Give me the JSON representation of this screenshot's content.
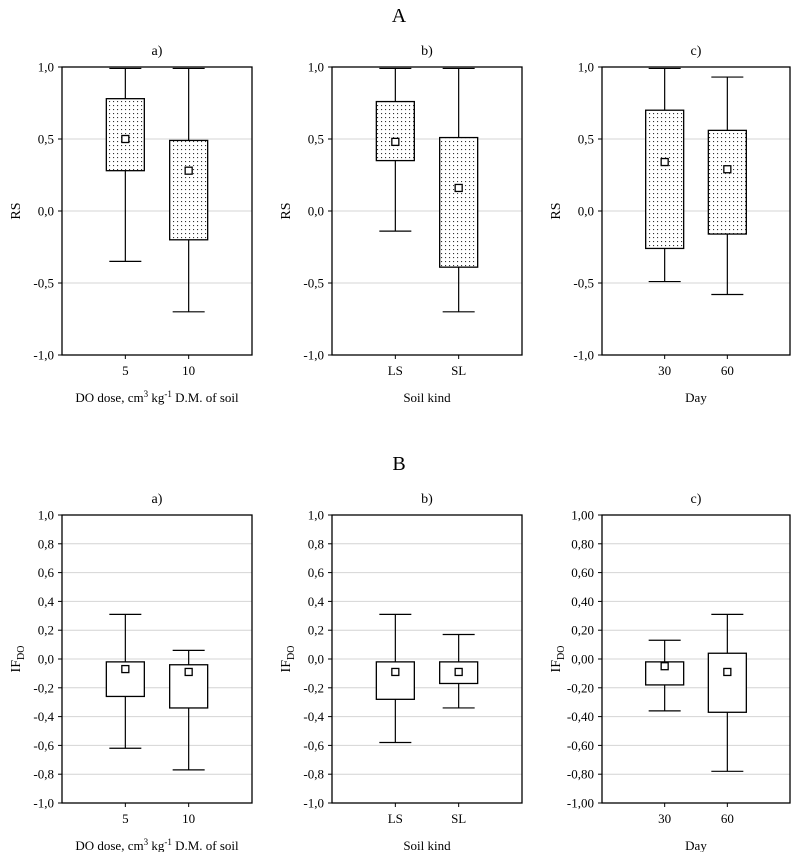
{
  "section_labels": {
    "top": "A",
    "bottom": "B"
  },
  "chart_data": [
    {
      "type": "box",
      "section": "A",
      "panel": "a)",
      "xlabel": "DO dose, cm³ kg⁻¹ D.M. of soil",
      "ylabel": "RS",
      "ylabel_sub": "",
      "ylim": [
        -1.0,
        1.0
      ],
      "yticks": [
        "1,0",
        "0,5",
        "0,0",
        "-0,5",
        "-1,0"
      ],
      "ytick_values": [
        1.0,
        0.5,
        0.0,
        -0.5,
        -1.0
      ],
      "grid": "horizontal",
      "fill": "dotted",
      "categories": [
        "5",
        "10"
      ],
      "boxes": [
        {
          "min": -0.35,
          "q1": 0.28,
          "median": 0.5,
          "q3": 0.78,
          "max": 0.99
        },
        {
          "min": -0.7,
          "q1": -0.2,
          "median": 0.28,
          "q3": 0.49,
          "max": 0.99
        }
      ]
    },
    {
      "type": "box",
      "section": "A",
      "panel": "b)",
      "xlabel": "Soil kind",
      "ylabel": "RS",
      "ylabel_sub": "",
      "ylim": [
        -1.0,
        1.0
      ],
      "yticks": [
        "1,0",
        "0,5",
        "0,0",
        "-0,5",
        "-1,0"
      ],
      "ytick_values": [
        1.0,
        0.5,
        0.0,
        -0.5,
        -1.0
      ],
      "grid": "horizontal",
      "fill": "dotted",
      "categories": [
        "LS",
        "SL"
      ],
      "boxes": [
        {
          "min": -0.14,
          "q1": 0.35,
          "median": 0.48,
          "q3": 0.76,
          "max": 0.99
        },
        {
          "min": -0.7,
          "q1": -0.39,
          "median": 0.16,
          "q3": 0.51,
          "max": 0.99
        }
      ]
    },
    {
      "type": "box",
      "section": "A",
      "panel": "c)",
      "xlabel": "Day",
      "ylabel": "RS",
      "ylabel_sub": "",
      "ylim": [
        -1.0,
        1.0
      ],
      "yticks": [
        "1,0",
        "0,5",
        "0,0",
        "-0,5",
        "-1,0"
      ],
      "ytick_values": [
        1.0,
        0.5,
        0.0,
        -0.5,
        -1.0
      ],
      "grid": "horizontal",
      "fill": "dotted",
      "categories": [
        "30",
        "60"
      ],
      "boxes": [
        {
          "min": -0.49,
          "q1": -0.26,
          "median": 0.34,
          "q3": 0.7,
          "max": 0.99
        },
        {
          "min": -0.58,
          "q1": -0.16,
          "median": 0.29,
          "q3": 0.56,
          "max": 0.93
        }
      ]
    },
    {
      "type": "box",
      "section": "B",
      "panel": "a)",
      "xlabel": "DO dose, cm³ kg⁻¹ D.M. of soil",
      "ylabel": "IF",
      "ylabel_sub": "DO",
      "ylim": [
        -1.0,
        1.0
      ],
      "yticks": [
        "1,0",
        "0,8",
        "0,6",
        "0,4",
        "0,2",
        "0,0",
        "-0,2",
        "-0,4",
        "-0,6",
        "-0,8",
        "-1,0"
      ],
      "ytick_values": [
        1.0,
        0.8,
        0.6,
        0.4,
        0.2,
        0.0,
        -0.2,
        -0.4,
        -0.6,
        -0.8,
        -1.0
      ],
      "grid": "horizontal",
      "fill": "none",
      "categories": [
        "5",
        "10"
      ],
      "boxes": [
        {
          "min": -0.62,
          "q1": -0.26,
          "median": -0.07,
          "q3": -0.02,
          "max": 0.31
        },
        {
          "min": -0.77,
          "q1": -0.34,
          "median": -0.09,
          "q3": -0.04,
          "max": 0.06
        }
      ]
    },
    {
      "type": "box",
      "section": "B",
      "panel": "b)",
      "xlabel": "Soil kind",
      "ylabel": "IF",
      "ylabel_sub": "DO",
      "ylim": [
        -1.0,
        1.0
      ],
      "yticks": [
        "1,0",
        "0,8",
        "0,6",
        "0,4",
        "0,2",
        "0,0",
        "-0,2",
        "-0,4",
        "-0,6",
        "-0,8",
        "-1,0"
      ],
      "ytick_values": [
        1.0,
        0.8,
        0.6,
        0.4,
        0.2,
        0.0,
        -0.2,
        -0.4,
        -0.6,
        -0.8,
        -1.0
      ],
      "grid": "horizontal",
      "fill": "none",
      "categories": [
        "LS",
        "SL"
      ],
      "boxes": [
        {
          "min": -0.58,
          "q1": -0.28,
          "median": -0.09,
          "q3": -0.02,
          "max": 0.31
        },
        {
          "min": -0.34,
          "q1": -0.17,
          "median": -0.09,
          "q3": -0.02,
          "max": 0.17
        }
      ]
    },
    {
      "type": "box",
      "section": "B",
      "panel": "c)",
      "xlabel": "Day",
      "ylabel": "IF",
      "ylabel_sub": "DO",
      "ylim": [
        -1.0,
        1.0
      ],
      "yticks": [
        "1,00",
        "0,80",
        "0,60",
        "0,40",
        "0,20",
        "0,00",
        "-0,20",
        "-0,40",
        "-0,60",
        "-0,80",
        "-1,00"
      ],
      "ytick_values": [
        1.0,
        0.8,
        0.6,
        0.4,
        0.2,
        0.0,
        -0.2,
        -0.4,
        -0.6,
        -0.8,
        -1.0
      ],
      "grid": "horizontal",
      "fill": "none",
      "categories": [
        "30",
        "60"
      ],
      "boxes": [
        {
          "min": -0.36,
          "q1": -0.18,
          "median": -0.05,
          "q3": -0.02,
          "max": 0.13
        },
        {
          "min": -0.78,
          "q1": -0.37,
          "median": -0.09,
          "q3": 0.04,
          "max": 0.31
        }
      ]
    }
  ]
}
